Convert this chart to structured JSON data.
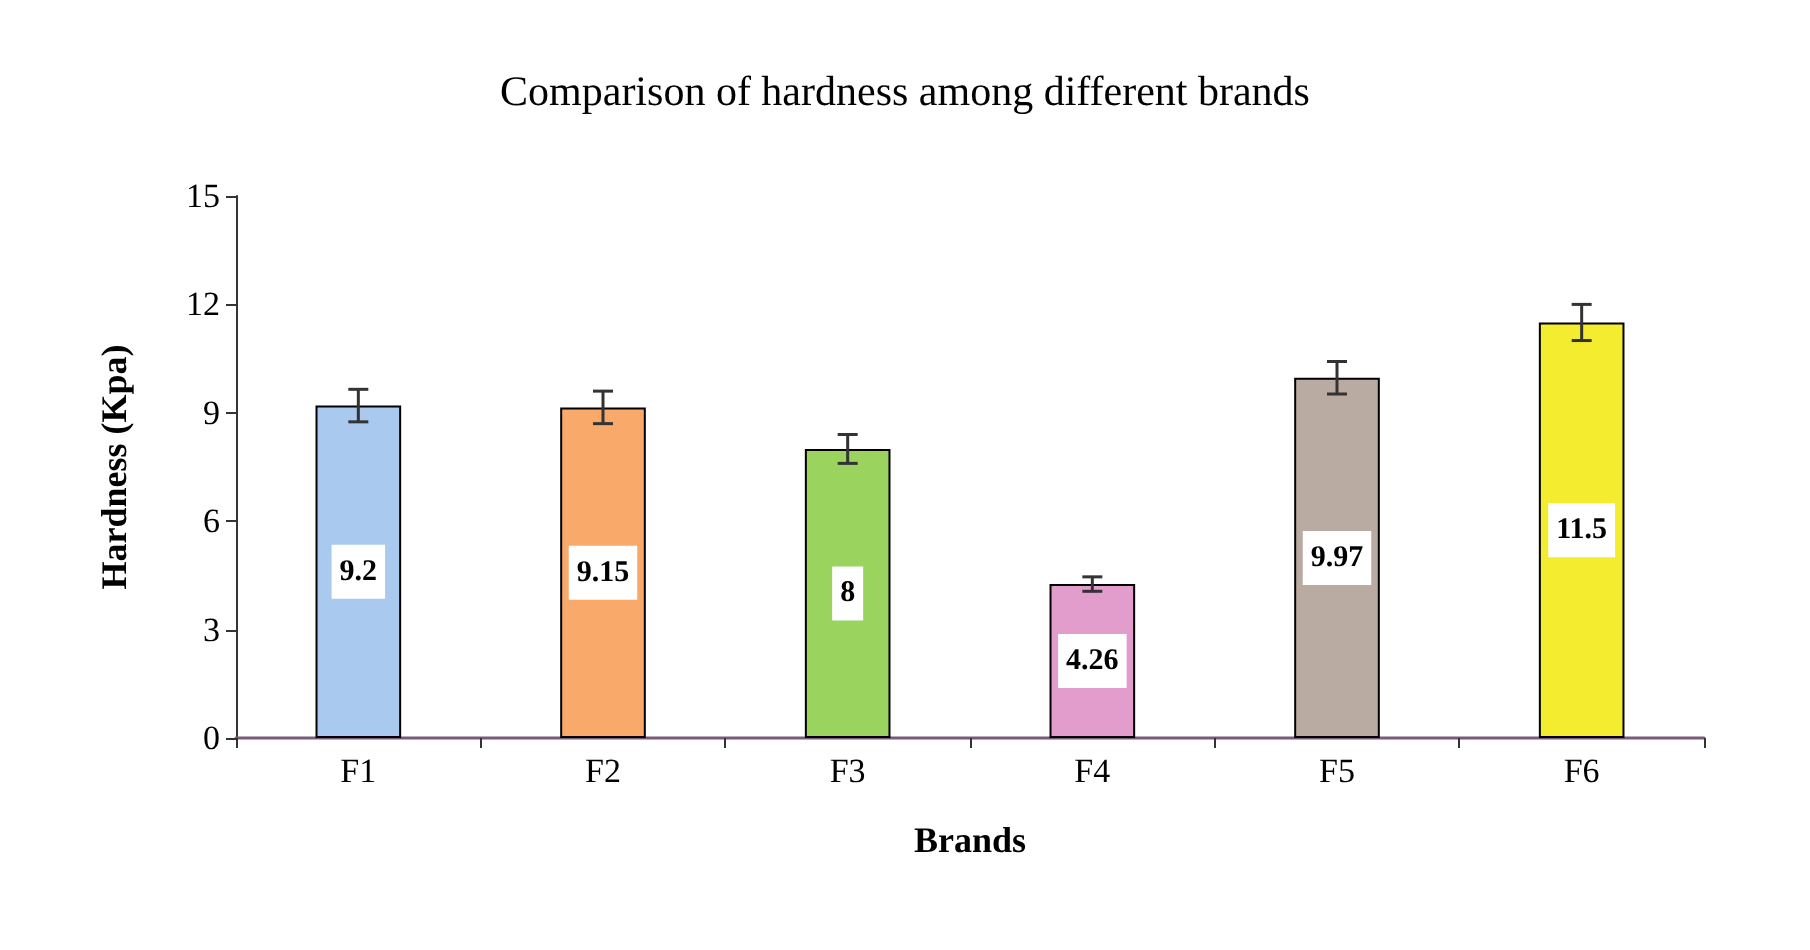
{
  "chart_data": {
    "type": "bar",
    "title": "Comparison of hardness among different brands",
    "xlabel": "Brands",
    "ylabel": "Hardness (Kpa)",
    "categories": [
      "F1",
      "F2",
      "F3",
      "F4",
      "F5",
      "F6"
    ],
    "values": [
      9.2,
      9.15,
      8,
      4.26,
      9.97,
      11.5
    ],
    "colors": [
      "#a9c9ee",
      "#f9a96a",
      "#9ad35e",
      "#e39dcd",
      "#b9aba1",
      "#f4ec2e"
    ],
    "errors": [
      0.45,
      0.45,
      0.4,
      0.2,
      0.45,
      0.5
    ],
    "ylim": [
      0,
      15
    ],
    "yticks": [
      0,
      3,
      6,
      9,
      12,
      15
    ],
    "grid": false,
    "data_labels": true
  }
}
